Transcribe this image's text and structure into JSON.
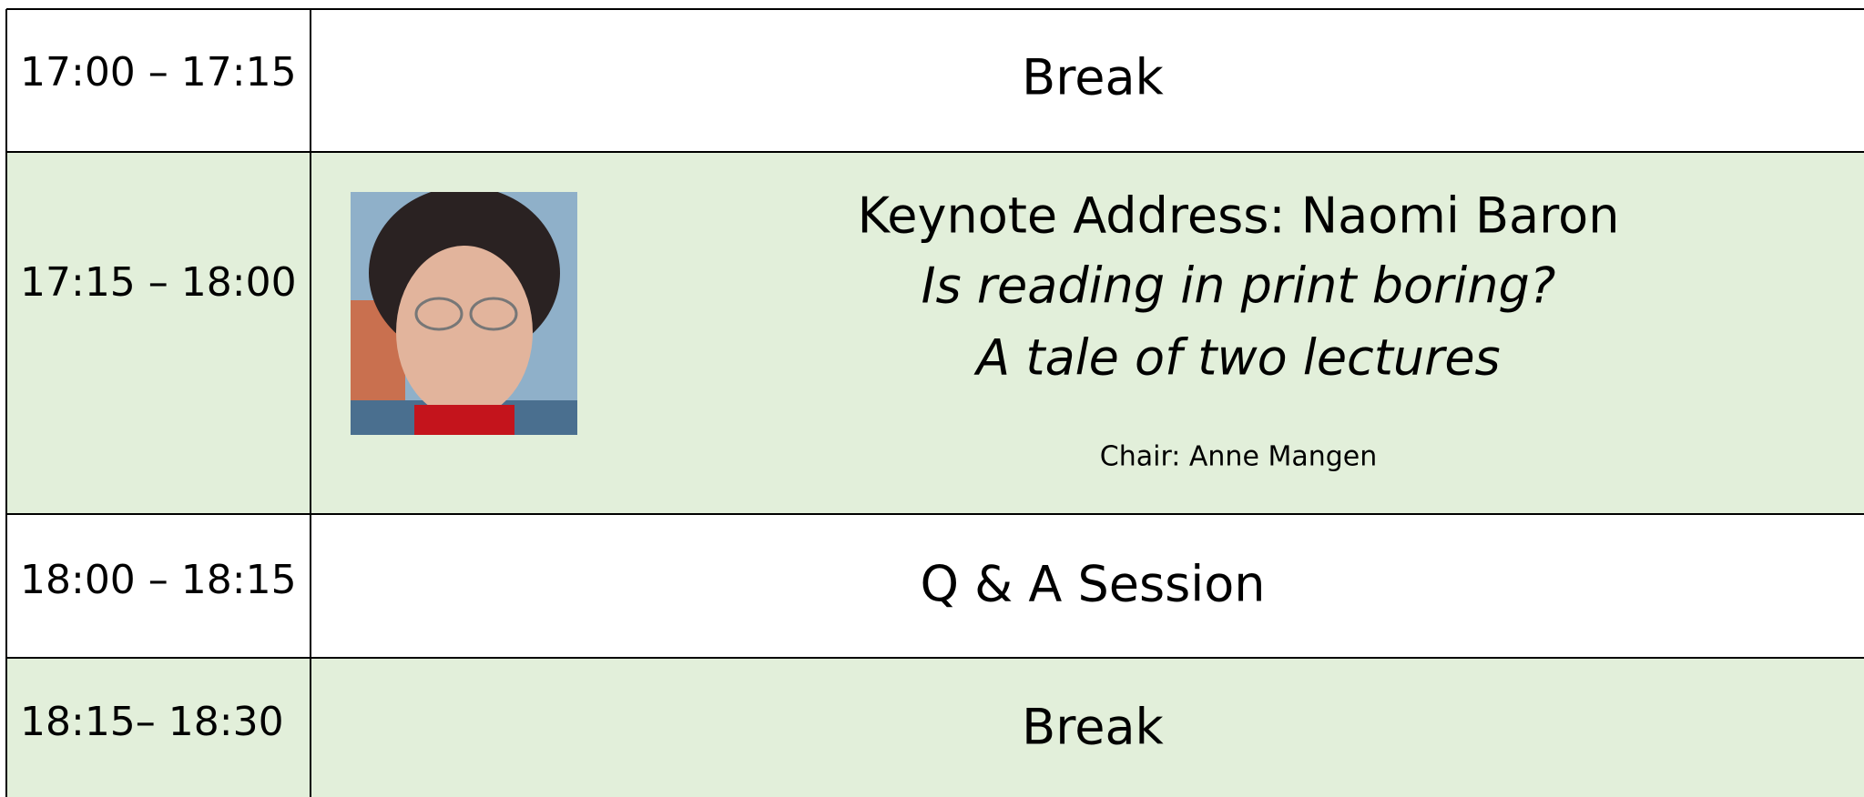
{
  "schedule": {
    "rows": [
      {
        "time": "17:00 – 17:15",
        "title": "Break"
      },
      {
        "time": "17:15 – 18:00",
        "title": "Keynote Address:  Naomi Baron",
        "talk_lines": [
          "Is reading in print boring?",
          "A tale of two lectures"
        ],
        "chair": "Chair:  Anne Mangen"
      },
      {
        "time": "18:00 – 18:15",
        "title": "Q & A Session"
      },
      {
        "time": "18:15– 18:30",
        "title": "Break"
      }
    ]
  }
}
